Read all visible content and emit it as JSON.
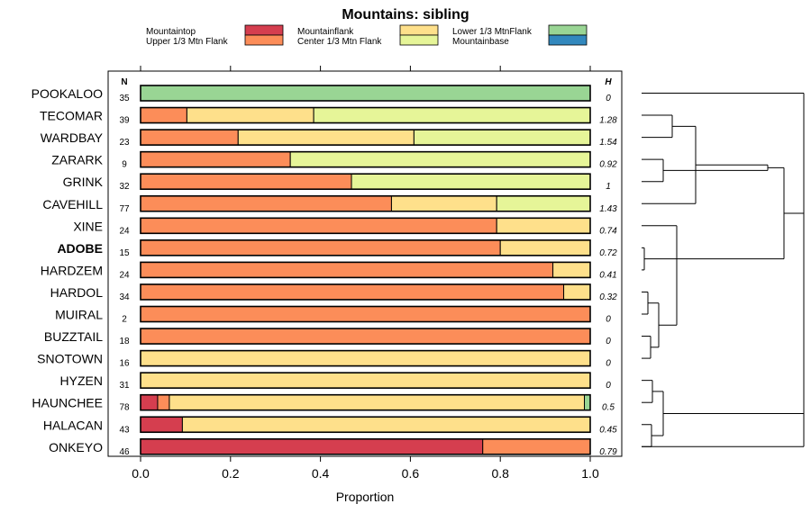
{
  "chart_data": {
    "type": "stacked-bar-horizontal",
    "title": "Mountains: sibling",
    "xlabel": "Proportion",
    "xlim": [
      0,
      1
    ],
    "xticks": [
      "0.0",
      "0.2",
      "0.4",
      "0.6",
      "0.8",
      "1.0"
    ],
    "xtick_values": [
      0,
      0.2,
      0.4,
      0.6,
      0.8,
      1.0
    ],
    "n_header": "N",
    "h_header": "H",
    "highlight": "ADOBE",
    "legend": [
      {
        "label": "Mountaintop",
        "color": "#d53e4f"
      },
      {
        "label": "Upper 1/3 Mtn Flank",
        "color": "#fc8d59"
      },
      {
        "label": "Mountainflank",
        "color": "#fee08b"
      },
      {
        "label": "Center 1/3 Mtn Flank",
        "color": "#e6f598"
      },
      {
        "label": "Lower 1/3 MtnFlank",
        "color": "#99d594"
      },
      {
        "label": "Mountainbase",
        "color": "#3288bd"
      }
    ],
    "categories": [
      "POOKALOO",
      "TECOMAR",
      "WARDBAY",
      "ZARARK",
      "GRINK",
      "CAVEHILL",
      "XINE",
      "ADOBE",
      "HARDZEM",
      "HARDOL",
      "MUIRAL",
      "BUZZTAIL",
      "SNOTOWN",
      "HYZEN",
      "HAUNCHEE",
      "HALACAN",
      "ONKEYO"
    ],
    "n": [
      "35",
      "39",
      "23",
      "9",
      "32",
      "77",
      "24",
      "15",
      "24",
      "34",
      "2",
      "18",
      "16",
      "31",
      "78",
      "43",
      "46"
    ],
    "h": [
      "0",
      "1.28",
      "1.54",
      "0.92",
      "1",
      "1.43",
      "0.74",
      "0.72",
      "0.41",
      "0.32",
      "0",
      "0",
      "0",
      "0",
      "0.5",
      "0.45",
      "0.79"
    ],
    "series": [
      {
        "name": "Mountaintop",
        "values": [
          0,
          0,
          0,
          0,
          0,
          0,
          0,
          0,
          0,
          0,
          0,
          0,
          0,
          0,
          0.038,
          0.093,
          0.761
        ]
      },
      {
        "name": "Upper 1/3 Mtn Flank",
        "values": [
          0,
          0.103,
          0.217,
          0.333,
          0.469,
          0.558,
          0.792,
          0.8,
          0.917,
          0.941,
          1.0,
          1.0,
          0,
          0,
          0.026,
          0,
          0.239
        ]
      },
      {
        "name": "Mountainflank",
        "values": [
          0,
          0.282,
          0.391,
          0,
          0,
          0.234,
          0.208,
          0.2,
          0.083,
          0.059,
          0,
          0,
          1.0,
          1.0,
          0.923,
          0.907,
          0
        ]
      },
      {
        "name": "Center 1/3 Mtn Flank",
        "values": [
          0,
          0.615,
          0.392,
          0.667,
          0.531,
          0.208,
          0,
          0,
          0,
          0,
          0,
          0,
          0,
          0,
          0,
          0,
          0
        ]
      },
      {
        "name": "Lower 1/3 MtnFlank",
        "values": [
          1.0,
          0,
          0,
          0,
          0,
          0,
          0,
          0,
          0,
          0,
          0,
          0,
          0,
          0,
          0.013,
          0,
          0
        ]
      },
      {
        "name": "Mountainbase",
        "values": [
          0,
          0,
          0,
          0,
          0,
          0,
          0,
          0,
          0,
          0,
          0,
          0,
          0,
          0,
          0,
          0,
          0
        ]
      }
    ]
  }
}
